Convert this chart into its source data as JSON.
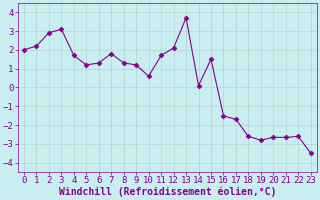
{
  "x": [
    0,
    1,
    2,
    3,
    4,
    5,
    6,
    7,
    8,
    9,
    10,
    11,
    12,
    13,
    14,
    15,
    16,
    17,
    18,
    19,
    20,
    21,
    22,
    23
  ],
  "y": [
    2.0,
    2.2,
    2.9,
    3.1,
    1.7,
    1.2,
    1.3,
    1.8,
    1.3,
    1.2,
    0.6,
    1.7,
    2.1,
    3.7,
    0.1,
    1.5,
    -1.5,
    -1.7,
    -2.6,
    -2.8,
    -2.65,
    -2.65,
    -2.6,
    -3.5
  ],
  "line_color": "#880088",
  "marker": "D",
  "marker_size": 2.5,
  "bg_color": "#c8eef0",
  "grid_color": "#b0d8d0",
  "xlabel": "Windchill (Refroidissement éolien,°C)",
  "xlabel_color": "#880088",
  "xlabel_fontsize": 7,
  "tick_color": "#880088",
  "tick_fontsize": 6.5,
  "ylim": [
    -4.5,
    4.5
  ],
  "xlim": [
    -0.5,
    23.5
  ],
  "yticks": [
    -4,
    -3,
    -2,
    -1,
    0,
    1,
    2,
    3,
    4
  ],
  "xticks": [
    0,
    1,
    2,
    3,
    4,
    5,
    6,
    7,
    8,
    9,
    10,
    11,
    12,
    13,
    14,
    15,
    16,
    17,
    18,
    19,
    20,
    21,
    22,
    23
  ]
}
